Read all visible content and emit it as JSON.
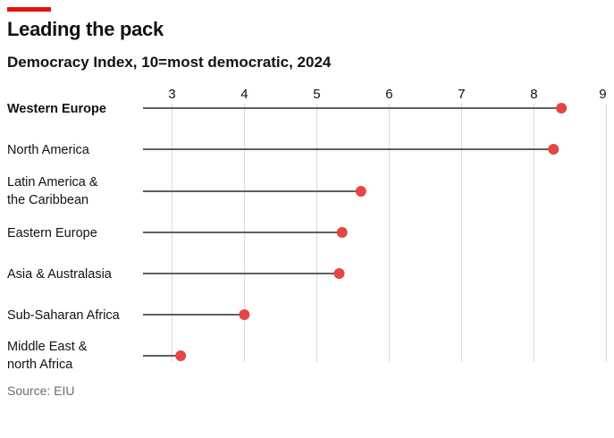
{
  "header": {
    "title": "Leading the pack",
    "subtitle": "Democracy Index, 10=most democratic, 2024"
  },
  "footer": {
    "source": "Source: EIU"
  },
  "colors": {
    "accent": "#e3120b",
    "dot": "#e64545",
    "stem": "#5f5f5f",
    "grid": "#d9d9d9"
  },
  "chart_data": {
    "type": "scatter",
    "subtype": "lollipop",
    "title": "Leading the pack",
    "subtitle": "Democracy Index, 10=most democratic, 2024",
    "xlim": [
      2.6,
      9
    ],
    "xticks": [
      3,
      4,
      5,
      6,
      7,
      8,
      9
    ],
    "grid": true,
    "categories": [
      {
        "lines": [
          "Western Europe"
        ],
        "bold": true
      },
      {
        "lines": [
          "North America"
        ],
        "bold": false
      },
      {
        "lines": [
          "Latin America &",
          "the Caribbean"
        ],
        "bold": false
      },
      {
        "lines": [
          "Eastern Europe"
        ],
        "bold": false
      },
      {
        "lines": [
          "Asia & Australasia"
        ],
        "bold": false
      },
      {
        "lines": [
          "Sub-Saharan Africa"
        ],
        "bold": false
      },
      {
        "lines": [
          "Middle East &",
          "north Africa"
        ],
        "bold": false
      }
    ],
    "values": [
      8.38,
      8.27,
      5.61,
      5.35,
      5.31,
      4.0,
      3.12
    ]
  }
}
